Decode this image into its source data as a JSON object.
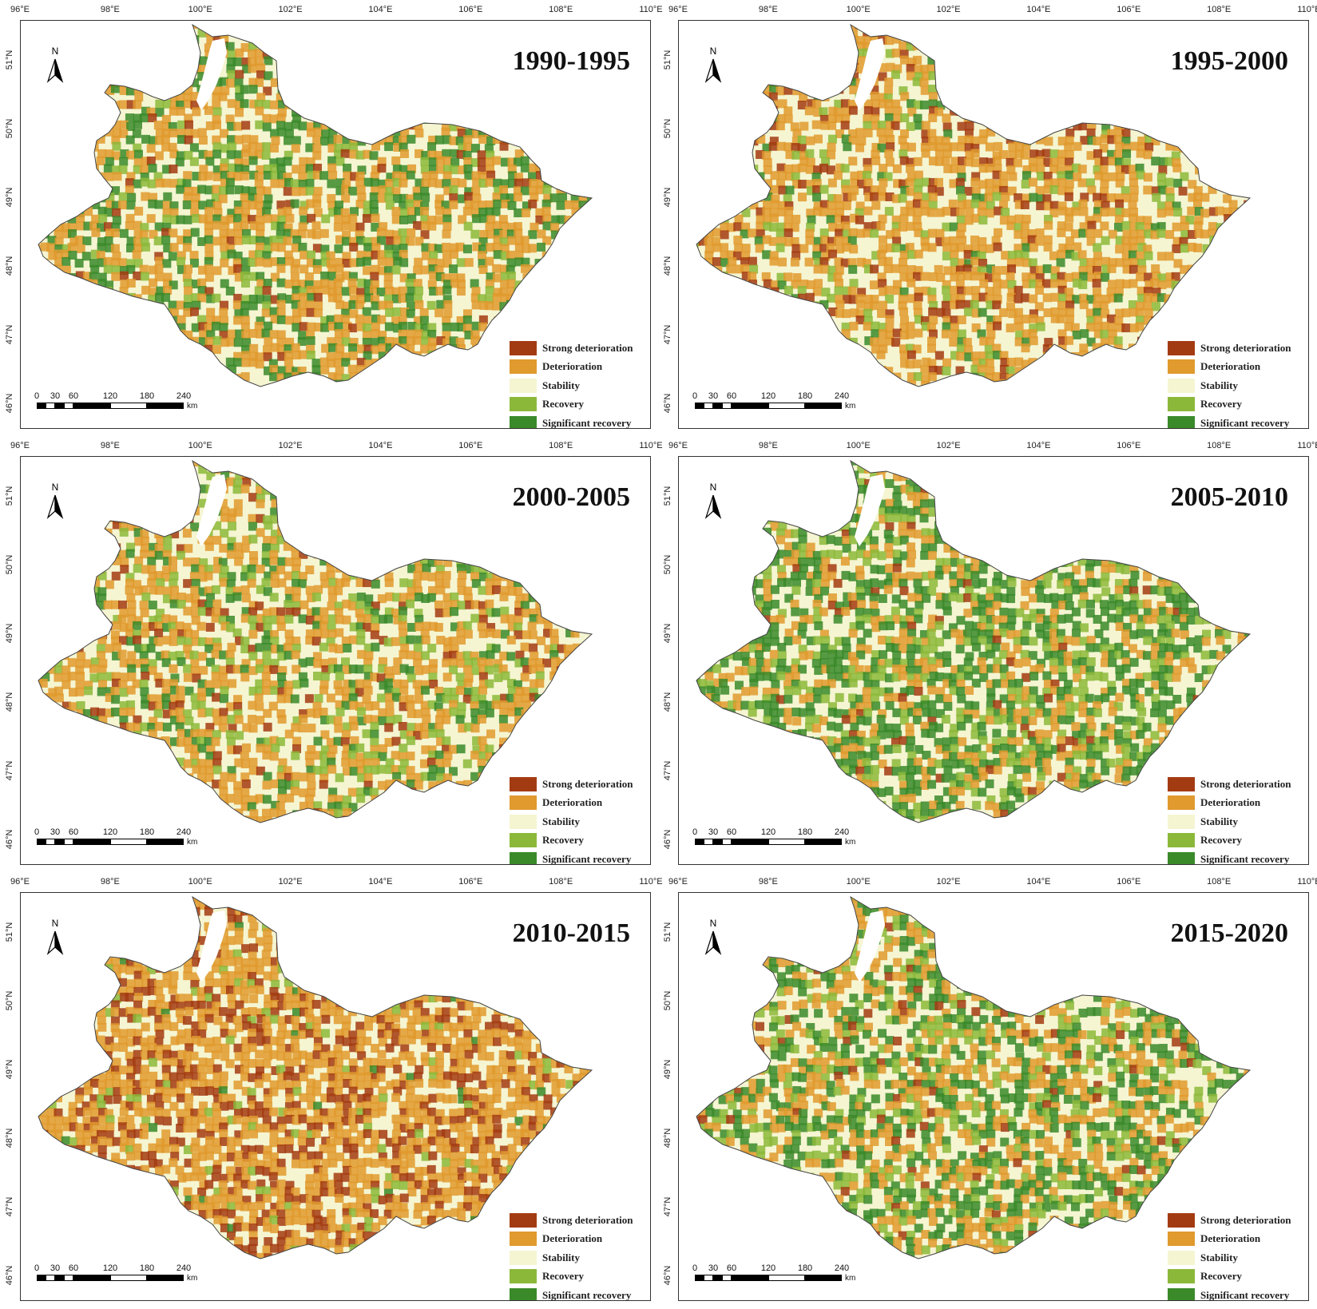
{
  "lon_ticks": [
    "96°E",
    "98°E",
    "100°E",
    "102°E",
    "104°E",
    "106°E",
    "108°E",
    "110°E"
  ],
  "lat_ticks": [
    "51°N",
    "50°N",
    "49°N",
    "48°N",
    "47°N",
    "46°N"
  ],
  "north_label": "N",
  "scale": {
    "labels": [
      "0",
      "30",
      "60",
      "120",
      "180",
      "240"
    ],
    "unit": "km"
  },
  "legend": [
    {
      "label": "Strong deterioration",
      "color": "#a33b12"
    },
    {
      "label": "Deterioration",
      "color": "#e09a2e"
    },
    {
      "label": "Stability",
      "color": "#f5f5d2"
    },
    {
      "label": "Recovery",
      "color": "#8cb83a"
    },
    {
      "label": "Significant recovery",
      "color": "#3a8a2a"
    }
  ],
  "colors": {
    "strong_deterioration": "#a33b12",
    "deterioration": "#e09a2e",
    "stability": "#f5f5d2",
    "recovery": "#8cb83a",
    "significant_recovery": "#3a8a2a",
    "water": "#ffffff"
  },
  "panels": [
    {
      "title": "1990-1995",
      "mix": [
        0.03,
        0.35,
        0.35,
        0.07,
        0.2
      ]
    },
    {
      "title": "1995-2000",
      "mix": [
        0.1,
        0.38,
        0.4,
        0.08,
        0.04
      ]
    },
    {
      "title": "2000-2005",
      "mix": [
        0.04,
        0.33,
        0.4,
        0.13,
        0.1
      ]
    },
    {
      "title": "2005-2010",
      "mix": [
        0.02,
        0.18,
        0.36,
        0.16,
        0.28
      ]
    },
    {
      "title": "2010-2015",
      "mix": [
        0.2,
        0.45,
        0.3,
        0.04,
        0.01
      ]
    },
    {
      "title": "2015-2020",
      "mix": [
        0.03,
        0.22,
        0.38,
        0.14,
        0.23
      ]
    }
  ]
}
